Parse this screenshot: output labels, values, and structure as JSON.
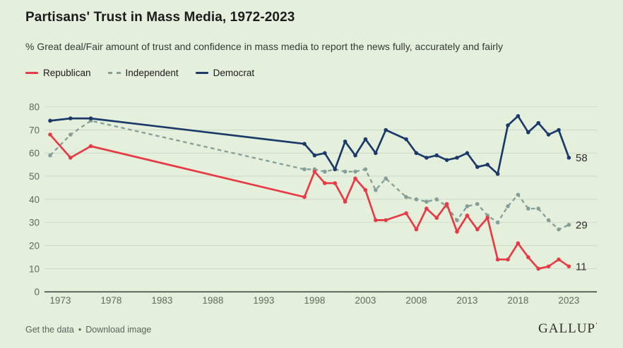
{
  "title": "Partisans' Trust in Mass Media, 1972-2023",
  "subtitle": "% Great deal/Fair amount of trust and confidence in mass media to report the news fully, accurately and fairly",
  "colors": {
    "background": "#e4efdc",
    "republican": "#e63b46",
    "independent": "#849e99",
    "democrat": "#1b3a6a",
    "gridline": "#cdd9c6",
    "axis_line": "#3f4540",
    "tick_text": "#5f6a60",
    "end_label_text": "#2e2e2e"
  },
  "footer": {
    "get_data_label": "Get the data",
    "separator": "•",
    "download_label": "Download image",
    "brand": "GALLUP",
    "brand_mark": "’"
  },
  "chart_data": {
    "type": "line",
    "title": "Partisans' Trust in Mass Media, 1972-2023",
    "xlabel": "",
    "ylabel": "% Great deal/Fair amount of trust",
    "grid": true,
    "legend_position": "top-left",
    "xlim": [
      1971,
      2024
    ],
    "ylim": [
      0,
      80
    ],
    "xticks": [
      1973,
      1978,
      1983,
      1988,
      1993,
      1998,
      2003,
      2008,
      2013,
      2018,
      2023
    ],
    "yticks": [
      0,
      10,
      20,
      30,
      40,
      50,
      60,
      70,
      80
    ],
    "x": [
      1972,
      1974,
      1976,
      1997,
      1998,
      1999,
      2000,
      2001,
      2002,
      2003,
      2004,
      2005,
      2007,
      2008,
      2009,
      2010,
      2011,
      2012,
      2013,
      2014,
      2015,
      2016,
      2017,
      2018,
      2019,
      2020,
      2021,
      2022,
      2023
    ],
    "series": [
      {
        "name": "Republican",
        "color": "#e63b46",
        "line_style": "solid",
        "end_label": "11",
        "values": [
          68,
          58,
          63,
          41,
          52,
          47,
          47,
          39,
          49,
          44,
          31,
          31,
          34,
          27,
          36,
          32,
          38,
          26,
          33,
          27,
          32,
          14,
          14,
          21,
          15,
          10,
          11,
          14,
          11
        ]
      },
      {
        "name": "Independent",
        "color": "#849e99",
        "line_style": "dashed",
        "end_label": "29",
        "values": [
          59,
          68,
          74,
          53,
          53,
          52,
          53,
          52,
          52,
          53,
          44,
          49,
          41,
          40,
          39,
          40,
          37,
          31,
          37,
          38,
          33,
          30,
          37,
          42,
          36,
          36,
          31,
          27,
          29
        ]
      },
      {
        "name": "Democrat",
        "color": "#1b3a6a",
        "line_style": "solid",
        "end_label": "58",
        "values": [
          74,
          75,
          75,
          64,
          59,
          60,
          53,
          65,
          59,
          66,
          60,
          70,
          66,
          60,
          58,
          59,
          57,
          58,
          60,
          54,
          55,
          51,
          72,
          76,
          69,
          73,
          68,
          70,
          58
        ]
      }
    ]
  }
}
